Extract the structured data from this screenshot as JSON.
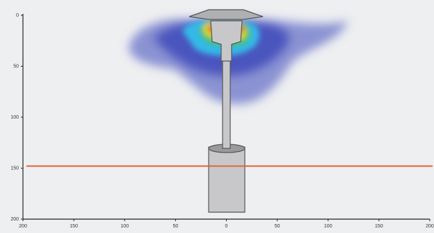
{
  "chart_data": {
    "type": "heater-plume",
    "xlim": [
      -200,
      200
    ],
    "xticks": [
      {
        "value": -200,
        "label": "200"
      },
      {
        "value": -150,
        "label": "150"
      },
      {
        "value": -100,
        "label": "100"
      },
      {
        "value": -50,
        "label": "50"
      },
      0,
      50,
      100,
      150,
      200
    ],
    "ylim": [
      200,
      0
    ],
    "yticks": [
      0,
      50,
      100,
      150,
      200
    ],
    "reference_line": 148,
    "reference_color": "#e0623a"
  }
}
